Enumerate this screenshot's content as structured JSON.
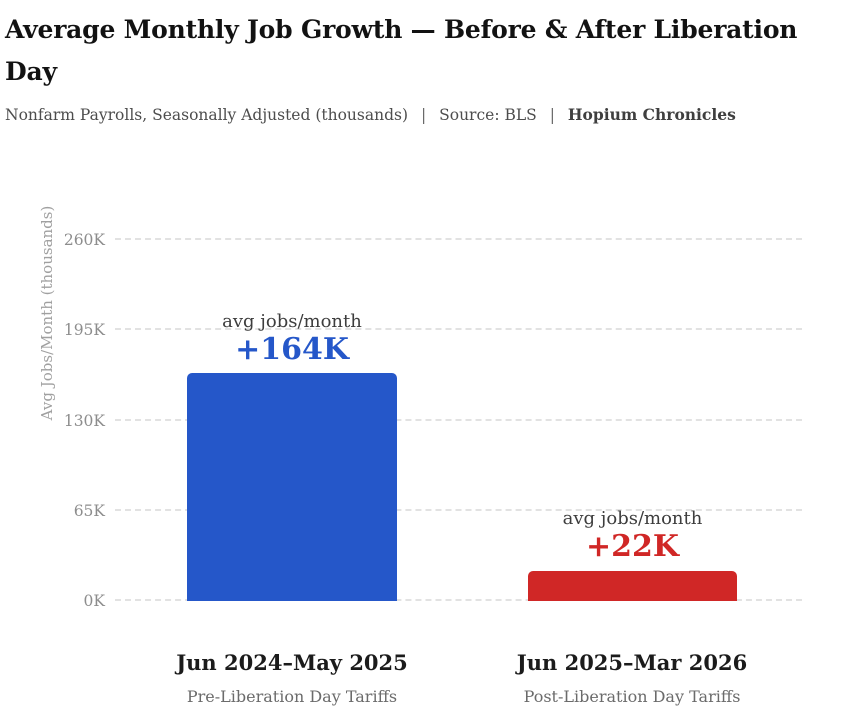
{
  "header": {
    "title_line1": "Average Monthly Job Growth — Before & After Liberation",
    "title_line2": "Day",
    "subtitle": {
      "notes": "Nonfarm Payrolls, Seasonally Adjusted (thousands)",
      "divider": "|",
      "source": "Source: BLS",
      "brand": "Hopium Chronicles"
    }
  },
  "chart_data": {
    "type": "bar",
    "title": "Average Monthly Job Growth — Before & After Liberation Day",
    "subtitle": "Nonfarm Payrolls, Seasonally Adjusted (thousands) | Source: BLS | Hopium Chronicles",
    "ylabel": "Avg Jobs/Month (thousands)",
    "categories": [
      "Jun 2024–May 2025",
      "Jun 2025–Mar 2026"
    ],
    "category_sublabels": [
      "Pre-Liberation Day Tariffs",
      "Post-Liberation Day Tariffs"
    ],
    "annotation_label": "avg jobs/month",
    "values": [
      164,
      22
    ],
    "value_labels": [
      "+164K",
      "+22K"
    ],
    "bar_colors": [
      "#2557c9",
      "#d02726"
    ],
    "yticks": [
      "0K",
      "65K",
      "130K",
      "195K",
      "260K"
    ],
    "ylim": [
      0,
      260
    ],
    "grid": "horizontal-dashed",
    "legend": "none"
  }
}
